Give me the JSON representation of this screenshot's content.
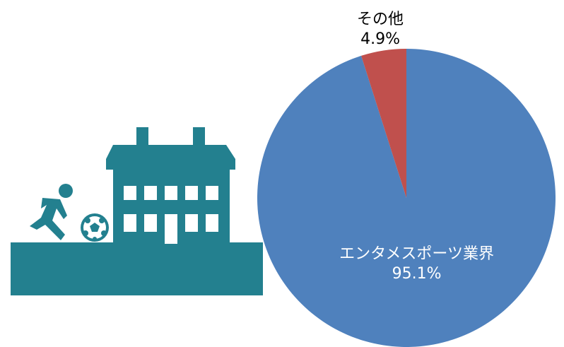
{
  "chart_data": {
    "type": "pie",
    "categories": [
      "エンタメスポーツ業界",
      "その他"
    ],
    "values": [
      95.1,
      4.9
    ],
    "value_labels": [
      "95.1%",
      "4.9%"
    ],
    "colors": [
      "#4f81bd",
      "#c0504d"
    ]
  }
}
